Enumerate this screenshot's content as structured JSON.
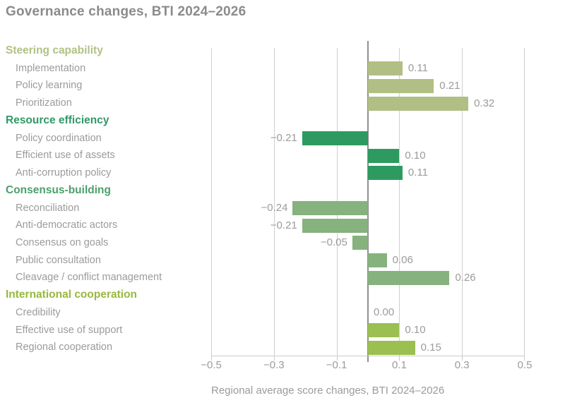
{
  "title": "Governance changes, BTI 2024–2026",
  "colors": {
    "title_text": "#8b8b8b",
    "item_text": "#9b9b9b",
    "value_text": "#9b9b9b",
    "gridline": "#cfcfcf",
    "zero_line": "#8f8f8f",
    "axis_line": "#c9c9c9",
    "background": "#ffffff"
  },
  "chart_data": {
    "type": "bar",
    "orientation": "horizontal",
    "title": "Governance changes, BTI 2024–2026",
    "xlabel": "Regional average score changes, BTI 2024–2026",
    "xlim": [
      -0.5,
      0.5
    ],
    "x_ticks": [
      -0.5,
      -0.3,
      -0.1,
      0.1,
      0.3,
      0.5
    ],
    "x_tick_labels": [
      {
        "value": -0.5,
        "label": "−0.5"
      },
      {
        "value": -0.3,
        "label": "−0.3"
      },
      {
        "value": -0.1,
        "label": "−0.1"
      },
      {
        "value": 0.1,
        "label": "0.1"
      },
      {
        "value": 0.3,
        "label": "0.3"
      },
      {
        "value": 0.5,
        "label": "0.5"
      }
    ],
    "grid": "vertical-on",
    "legend": "none",
    "groups": [
      {
        "label": "Steering capability",
        "heading_color": "#b2c186",
        "bar_color": "#b1bf84",
        "items": [
          {
            "label": "Implementation",
            "value": 0.11,
            "display": "0.11"
          },
          {
            "label": "Policy learning",
            "value": 0.21,
            "display": "0.21"
          },
          {
            "label": "Prioritization",
            "value": 0.32,
            "display": "0.32"
          }
        ]
      },
      {
        "label": "Resource efficiency",
        "heading_color": "#2f9965",
        "bar_color": "#2d9b60",
        "items": [
          {
            "label": "Policy coordination",
            "value": -0.21,
            "display": "−0.21"
          },
          {
            "label": "Efficient use of assets",
            "value": 0.1,
            "display": "0.10"
          },
          {
            "label": "Anti-corruption policy",
            "value": 0.11,
            "display": "0.11"
          }
        ]
      },
      {
        "label": "Consensus-building",
        "heading_color": "#4ba06a",
        "bar_color": "#86b27d",
        "items": [
          {
            "label": "Reconciliation",
            "value": -0.24,
            "display": "−0.24"
          },
          {
            "label": "Anti-democratic actors",
            "value": -0.21,
            "display": "−0.21"
          },
          {
            "label": "Consensus on goals",
            "value": -0.05,
            "display": "−0.05"
          },
          {
            "label": "Public consultation",
            "value": 0.06,
            "display": "0.06"
          },
          {
            "label": "Cleavage / conflict management",
            "value": 0.26,
            "display": "0.26"
          }
        ]
      },
      {
        "label": "International cooperation",
        "heading_color": "#98b83f",
        "bar_color": "#9cbf51",
        "items": [
          {
            "label": "Credibility",
            "value": 0.0,
            "display": "0.00"
          },
          {
            "label": "Effective use of support",
            "value": 0.1,
            "display": "0.10"
          },
          {
            "label": "Regional cooperation",
            "value": 0.15,
            "display": "0.15"
          }
        ]
      }
    ]
  }
}
